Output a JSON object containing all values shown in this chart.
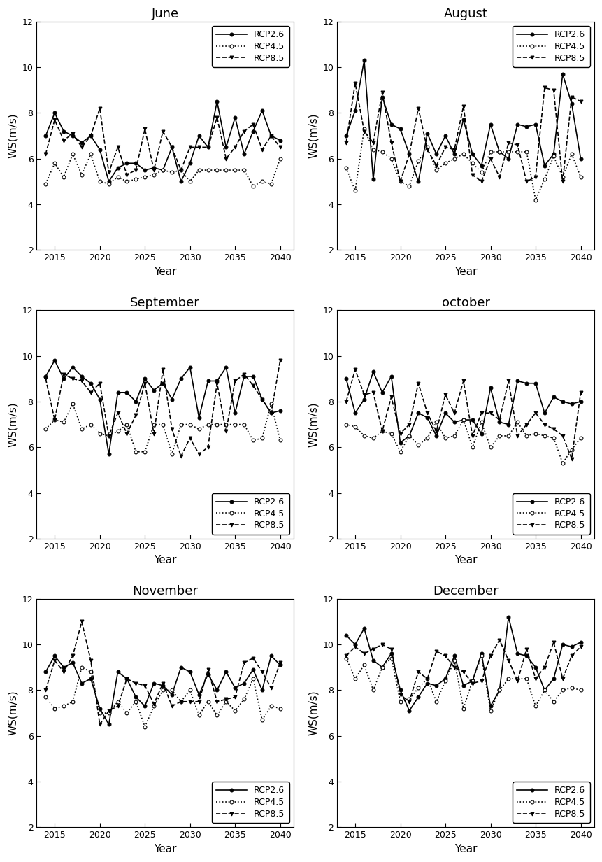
{
  "years": [
    2014,
    2015,
    2016,
    2017,
    2018,
    2019,
    2020,
    2021,
    2022,
    2023,
    2024,
    2025,
    2026,
    2027,
    2028,
    2029,
    2030,
    2031,
    2032,
    2033,
    2034,
    2035,
    2036,
    2037,
    2038,
    2039,
    2040
  ],
  "panels": [
    {
      "title": "June",
      "rcp26": [
        7.0,
        8.0,
        7.2,
        7.0,
        6.7,
        7.0,
        6.4,
        5.0,
        5.6,
        5.8,
        5.8,
        5.5,
        5.6,
        5.5,
        6.5,
        5.0,
        5.8,
        7.0,
        6.5,
        8.5,
        6.5,
        7.8,
        6.2,
        7.2,
        8.1,
        7.0,
        6.8
      ],
      "rcp45": [
        4.9,
        5.8,
        5.2,
        6.2,
        5.3,
        6.2,
        5.0,
        4.9,
        5.2,
        5.0,
        5.1,
        5.2,
        5.3,
        5.5,
        5.4,
        5.5,
        5.0,
        5.5,
        5.5,
        5.5,
        5.5,
        5.5,
        5.5,
        4.8,
        5.0,
        4.9,
        6.0
      ],
      "rcp85": [
        6.2,
        7.7,
        6.8,
        7.1,
        6.5,
        7.0,
        8.2,
        5.4,
        6.5,
        5.3,
        5.5,
        7.3,
        5.5,
        7.2,
        6.5,
        5.5,
        6.5,
        6.5,
        6.5,
        7.8,
        6.0,
        6.5,
        7.2,
        7.5,
        6.4,
        7.0,
        6.5
      ],
      "legend_loc": "upper right",
      "ylim": [
        2,
        12
      ],
      "yticks": [
        2,
        4,
        6,
        8,
        10,
        12
      ]
    },
    {
      "title": "August",
      "rcp26": [
        7.0,
        8.1,
        10.3,
        5.1,
        8.7,
        7.5,
        7.3,
        6.2,
        5.0,
        7.1,
        6.2,
        7.0,
        6.2,
        7.7,
        6.2,
        5.7,
        7.5,
        6.3,
        6.0,
        7.5,
        7.4,
        7.5,
        5.7,
        6.2,
        9.7,
        8.4,
        6.0
      ],
      "rcp45": [
        5.6,
        4.6,
        7.3,
        6.4,
        6.3,
        6.0,
        5.0,
        4.8,
        5.9,
        6.5,
        5.5,
        5.8,
        6.0,
        6.2,
        5.8,
        5.4,
        6.3,
        6.3,
        6.3,
        6.3,
        6.3,
        4.2,
        5.1,
        6.1,
        5.2,
        6.2,
        5.2
      ],
      "rcp85": [
        6.7,
        9.3,
        7.2,
        6.7,
        8.9,
        6.7,
        5.0,
        6.2,
        8.2,
        6.4,
        5.7,
        6.5,
        6.4,
        8.3,
        5.3,
        5.0,
        6.0,
        5.2,
        6.7,
        6.6,
        5.0,
        5.2,
        9.1,
        9.0,
        5.0,
        8.7,
        8.5
      ],
      "legend_loc": "upper right",
      "ylim": [
        2,
        12
      ],
      "yticks": [
        2,
        4,
        6,
        8,
        10,
        12
      ]
    },
    {
      "title": "September",
      "rcp26": [
        9.1,
        9.8,
        9.0,
        9.5,
        9.1,
        8.8,
        8.1,
        5.7,
        8.4,
        8.4,
        8.0,
        9.0,
        8.5,
        8.8,
        8.1,
        9.0,
        9.5,
        7.3,
        8.9,
        8.9,
        9.5,
        7.5,
        9.1,
        9.1,
        8.1,
        7.5,
        7.6
      ],
      "rcp45": [
        6.8,
        7.2,
        7.1,
        7.9,
        6.8,
        7.0,
        6.6,
        6.5,
        6.7,
        7.0,
        5.8,
        5.8,
        7.0,
        7.0,
        5.7,
        7.0,
        7.0,
        6.8,
        7.0,
        7.0,
        7.0,
        7.0,
        7.0,
        6.3,
        6.4,
        7.9,
        6.3
      ],
      "rcp85": [
        9.0,
        7.2,
        9.2,
        9.0,
        8.9,
        8.4,
        8.8,
        6.5,
        7.5,
        6.6,
        7.4,
        8.8,
        6.6,
        9.4,
        6.8,
        5.6,
        6.4,
        5.7,
        6.0,
        8.8,
        6.7,
        8.9,
        9.2,
        8.7,
        8.1,
        7.5,
        9.8
      ],
      "legend_loc": "lower right",
      "ylim": [
        2,
        12
      ],
      "yticks": [
        2,
        4,
        6,
        8,
        10,
        12
      ]
    },
    {
      "title": "october",
      "rcp26": [
        9.0,
        7.5,
        8.1,
        9.3,
        8.4,
        9.1,
        6.2,
        6.5,
        7.5,
        7.3,
        6.5,
        7.5,
        7.1,
        7.2,
        7.2,
        6.6,
        8.6,
        7.1,
        7.0,
        8.9,
        8.8,
        8.8,
        7.5,
        8.2,
        8.0,
        7.9,
        8.0
      ],
      "rcp45": [
        7.0,
        6.9,
        6.5,
        6.4,
        6.7,
        6.6,
        5.8,
        6.5,
        6.1,
        6.4,
        7.1,
        6.4,
        6.5,
        7.2,
        6.0,
        7.1,
        6.0,
        6.5,
        6.5,
        7.1,
        6.5,
        6.6,
        6.5,
        6.4,
        5.3,
        5.9,
        6.4
      ],
      "rcp85": [
        8.0,
        9.4,
        8.3,
        8.4,
        6.7,
        8.2,
        6.6,
        7.0,
        8.8,
        7.5,
        6.7,
        8.3,
        7.5,
        8.9,
        6.5,
        7.5,
        7.5,
        7.2,
        8.9,
        6.5,
        7.0,
        7.5,
        7.0,
        6.8,
        6.5,
        5.5,
        8.4
      ],
      "legend_loc": "lower right",
      "ylim": [
        2,
        12
      ],
      "yticks": [
        2,
        4,
        6,
        8,
        10,
        12
      ]
    },
    {
      "title": "November",
      "rcp26": [
        8.8,
        9.5,
        9.0,
        9.2,
        8.3,
        8.5,
        7.2,
        6.5,
        8.8,
        8.5,
        7.7,
        7.3,
        8.3,
        8.2,
        7.8,
        9.0,
        8.8,
        7.8,
        8.7,
        8.0,
        8.8,
        8.1,
        8.3,
        8.9,
        8.0,
        9.5,
        9.1
      ],
      "rcp45": [
        7.7,
        7.2,
        7.3,
        7.5,
        9.0,
        8.8,
        7.0,
        7.0,
        7.5,
        7.0,
        7.5,
        6.4,
        7.3,
        8.0,
        8.0,
        7.5,
        8.0,
        6.9,
        7.5,
        6.9,
        7.5,
        7.1,
        7.6,
        8.5,
        6.7,
        7.3,
        7.2
      ],
      "rcp85": [
        8.0,
        9.3,
        8.8,
        9.5,
        11.0,
        9.3,
        6.5,
        7.1,
        7.3,
        8.5,
        8.3,
        8.2,
        7.4,
        8.3,
        7.3,
        7.5,
        7.5,
        7.5,
        8.9,
        7.5,
        7.6,
        7.7,
        9.2,
        9.4,
        8.8,
        8.1,
        9.2
      ],
      "legend_loc": "lower right",
      "ylim": [
        2,
        12
      ],
      "yticks": [
        2,
        4,
        6,
        8,
        10,
        12
      ]
    },
    {
      "title": "December",
      "rcp26": [
        10.4,
        10.0,
        10.7,
        9.3,
        9.0,
        9.6,
        8.0,
        7.1,
        7.7,
        8.3,
        8.2,
        8.5,
        9.5,
        8.2,
        8.4,
        9.6,
        7.3,
        8.0,
        11.2,
        9.6,
        9.5,
        9.0,
        8.0,
        8.5,
        10.0,
        9.9,
        10.1
      ],
      "rcp45": [
        9.4,
        8.5,
        9.1,
        8.0,
        9.0,
        9.4,
        7.5,
        7.6,
        8.1,
        8.5,
        7.5,
        8.4,
        9.3,
        7.2,
        8.4,
        9.5,
        7.1,
        8.0,
        8.5,
        8.5,
        8.5,
        7.3,
        8.0,
        7.5,
        8.0,
        8.1,
        8.0
      ],
      "rcp85": [
        9.5,
        9.9,
        9.6,
        9.8,
        10.0,
        9.8,
        7.8,
        7.5,
        8.8,
        8.5,
        9.7,
        9.5,
        9.0,
        8.8,
        8.3,
        8.4,
        9.5,
        10.2,
        9.3,
        8.4,
        9.8,
        8.5,
        9.0,
        10.1,
        8.5,
        9.5,
        9.9
      ],
      "legend_loc": "lower right",
      "ylim": [
        2,
        12
      ],
      "yticks": [
        2,
        4,
        6,
        8,
        10,
        12
      ]
    }
  ],
  "xlabel": "Year",
  "ylabel": "WS(m/s)",
  "xticks": [
    2015,
    2020,
    2025,
    2030,
    2035,
    2040
  ],
  "xlim": [
    2013.0,
    2041.5
  ],
  "legend_labels": [
    "RCP2.6",
    "RCP4.5",
    "RCP8.5"
  ],
  "bg_color": "#ffffff"
}
